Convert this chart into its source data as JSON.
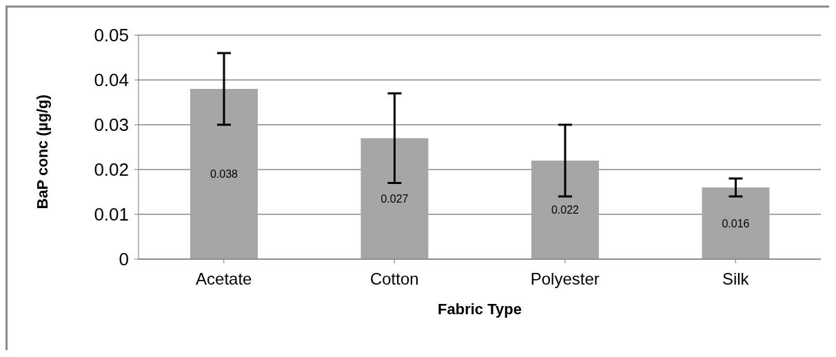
{
  "chart_data": {
    "type": "bar",
    "xlabel": "Fabric Type",
    "ylabel": "BaP conc (µg/g)",
    "categories": [
      "Acetate",
      "Cotton",
      "Polyester",
      "Silk"
    ],
    "values": [
      0.038,
      0.027,
      0.022,
      0.016
    ],
    "errors": [
      0.008,
      0.01,
      0.008,
      0.002
    ],
    "color": "#a6a6a6",
    "ylim": [
      0,
      0.05
    ],
    "yticks": [
      0,
      0.01,
      0.02,
      0.03,
      0.04,
      0.05
    ],
    "grid": "y",
    "data_labels": true
  }
}
